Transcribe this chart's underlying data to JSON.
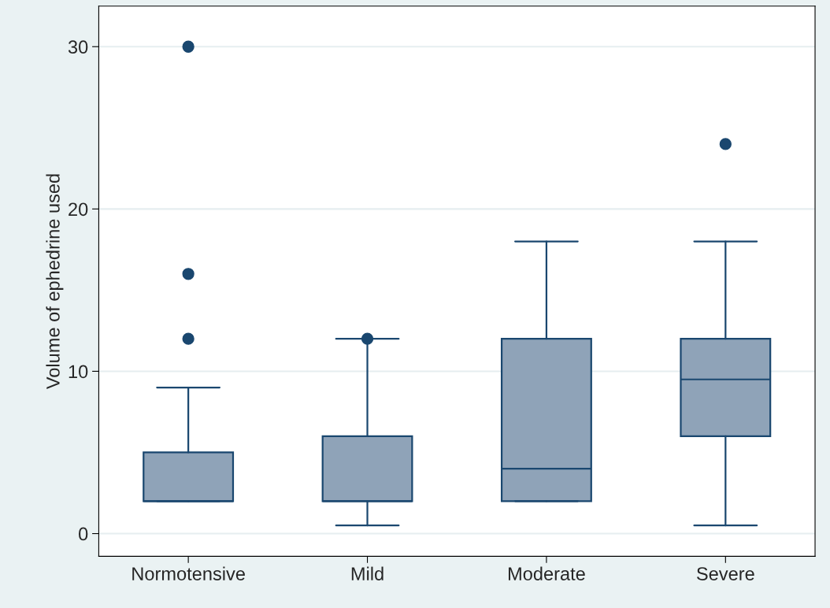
{
  "chart_data": {
    "type": "box",
    "ylabel": "Volume of ephedrine used",
    "categories": [
      "Normotensive",
      "Mild",
      "Moderate",
      "Severe"
    ],
    "boxes": [
      {
        "low": 2,
        "q1": 2,
        "median": 2,
        "q3": 5,
        "high": 9,
        "outliers": [
          12,
          16,
          30
        ]
      },
      {
        "low": 0.5,
        "q1": 2,
        "median": 2,
        "q3": 6,
        "high": 12,
        "outliers": [
          12
        ]
      },
      {
        "low": 2,
        "q1": 2,
        "median": 4,
        "q3": 12,
        "high": 18
      },
      {
        "low": 0.5,
        "q1": 6,
        "median": 9.5,
        "q3": 12,
        "high": 18,
        "outliers": [
          24
        ]
      }
    ],
    "color": "#8fa3b8",
    "ylim": [
      -1.4,
      32.5
    ],
    "yticks": [
      0,
      10,
      20,
      30
    ],
    "grid": "y",
    "legend": false,
    "marker": "circle"
  }
}
